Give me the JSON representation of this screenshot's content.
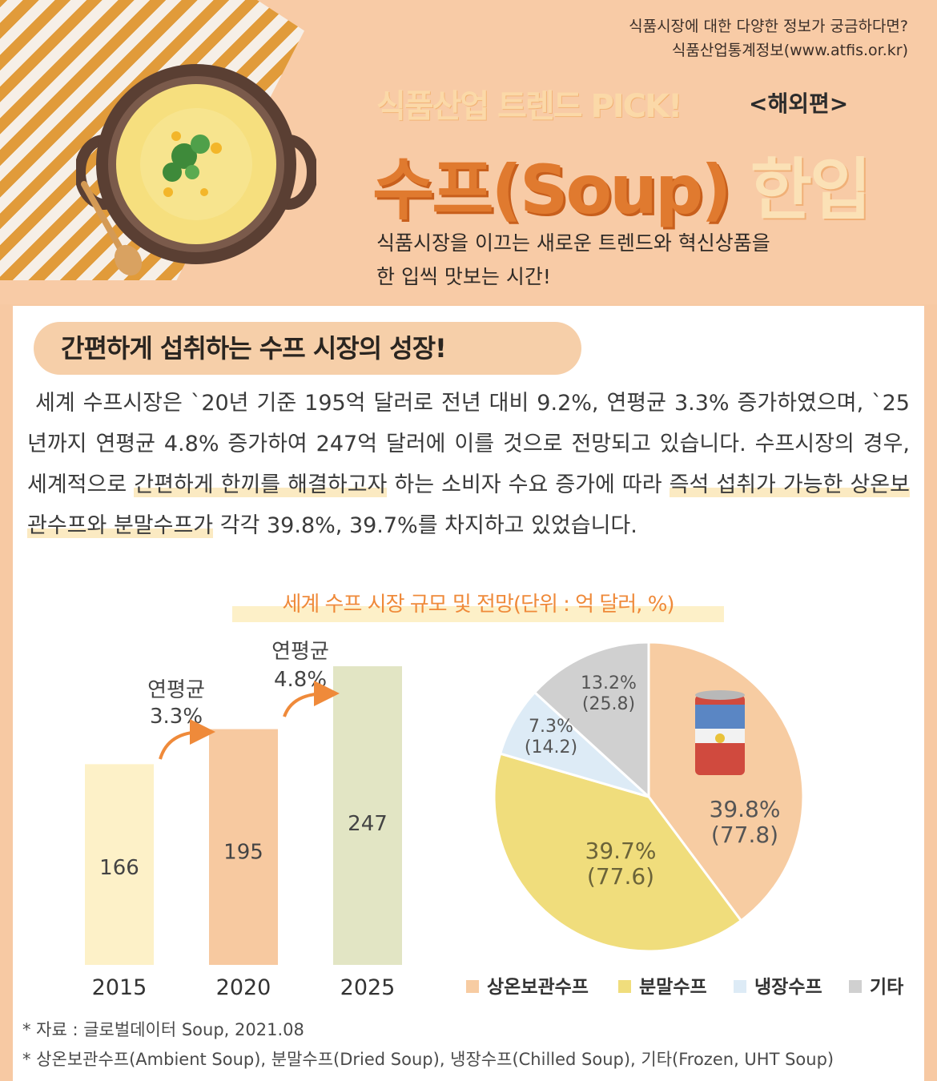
{
  "header": {
    "source_line1": "식품시장에 대한 다양한 정보가 궁금하다면?",
    "source_line2": "식품산업통계정보(www.atfis.or.kr)",
    "pick": "식품산업 트렌드 PICK!",
    "edition": "<해외편>",
    "title_main": "수프(Soup)",
    "title_bite": "한입",
    "subtitle_line1": "식품시장을 이끄는 새로운 트렌드와 혁신상품을",
    "subtitle_line2": "한 입씩 맛보는 시간!"
  },
  "section": {
    "title": "간편하게 섭취하는 수프 시장의 성장!",
    "para_a": "세계 수프시장은 `20년 기준 195억 달러로 전년 대비 9.2%, 연평균 3.3% 증가하였으며, `25년까지 연평균 4.8% 증가하여 247억 달러에 이를 것으로 전망되고 있습니다. 수프시장의 경우, 세계적으로 ",
    "para_hl1": "간편하게 한끼를 해결하고자",
    "para_b": " 하는 소비자 수요 증가에 따라 ",
    "para_hl2": "즉석 섭취가 가능한 상온보관수프와 분말수프가",
    "para_c": " 각각 39.8%, 39.7%를 차지하고 있었습니다."
  },
  "colors": {
    "ambient": "#f7cca2",
    "dried": "#f0dd7c",
    "chilled": "#ddebf6",
    "other": "#d0d0d0",
    "bar2015": "#fdf1c8",
    "bar2020": "#f7c9a0",
    "bar2025": "#e2e5c4",
    "accent": "#ef8a3a"
  },
  "chart_data": [
    {
      "type": "bar",
      "title": "세계 수프 시장 규모 및 전망(단위 : 억 달러, %)",
      "categories": [
        "2015",
        "2020",
        "2025"
      ],
      "values": [
        166,
        195,
        247
      ],
      "value_labels": [
        "166",
        "195",
        "247"
      ],
      "annotations": [
        {
          "line1": "연평균",
          "line2": "3.3%"
        },
        {
          "line1": "연평균",
          "line2": "4.8%"
        }
      ]
    },
    {
      "type": "pie",
      "labels": [
        "상온보관수프",
        "분말수프",
        "냉장수프",
        "기타"
      ],
      "values": [
        39.8,
        39.7,
        7.3,
        13.2
      ],
      "amounts": [
        77.8,
        77.6,
        14.2,
        25.8
      ],
      "pct_labels": [
        "39.8%",
        "39.7%",
        "7.3%",
        "13.2%"
      ],
      "amount_labels": [
        "(77.8)",
        "(77.6)",
        "(14.2)",
        "(25.8)"
      ],
      "legend_position": "bottom"
    }
  ],
  "notes": {
    "line1": "* 자료 : 글로벌데이터 Soup, 2021.08",
    "line2": "* 상온보관수프(Ambient Soup), 분말수프(Dried Soup), 냉장수프(Chilled Soup), 기타(Frozen, UHT Soup)"
  }
}
